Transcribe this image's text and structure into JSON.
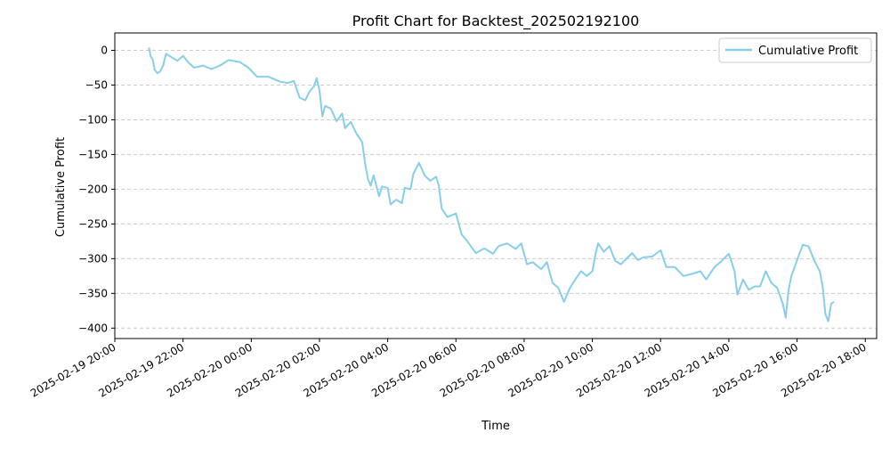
{
  "chart_data": {
    "type": "line",
    "title": "Profit Chart for Backtest_202502192100",
    "xlabel": "Time",
    "ylabel": "Cumulative Profit",
    "ylim": [
      -415,
      25
    ],
    "xlim": [
      "2025-02-19 20:00",
      "2025-02-20 18:20"
    ],
    "yticks": [
      0,
      -50,
      -100,
      -150,
      -200,
      -250,
      -300,
      -350,
      -400
    ],
    "xticks": [
      "2025-02-19 20:00",
      "2025-02-19 22:00",
      "2025-02-20 00:00",
      "2025-02-20 02:00",
      "2025-02-20 04:00",
      "2025-02-20 06:00",
      "2025-02-20 08:00",
      "2025-02-20 10:00",
      "2025-02-20 12:00",
      "2025-02-20 14:00",
      "2025-02-20 16:00",
      "2025-02-20 18:00"
    ],
    "grid": "y-dashed",
    "legend": {
      "position": "top-right",
      "entries": [
        "Cumulative Profit"
      ]
    },
    "colors": {
      "series": "#87ceeb",
      "grid": "#cccccc"
    },
    "series": [
      {
        "name": "Cumulative Profit",
        "points": [
          [
            "2025-02-19 21:00",
            4
          ],
          [
            "2025-02-19 21:03",
            -8
          ],
          [
            "2025-02-19 21:07",
            -14
          ],
          [
            "2025-02-19 21:10",
            -28
          ],
          [
            "2025-02-19 21:15",
            -33
          ],
          [
            "2025-02-19 21:20",
            -30
          ],
          [
            "2025-02-19 21:25",
            -22
          ],
          [
            "2025-02-19 21:30",
            -5
          ],
          [
            "2025-02-19 21:40",
            -10
          ],
          [
            "2025-02-19 21:50",
            -15
          ],
          [
            "2025-02-19 22:00",
            -8
          ],
          [
            "2025-02-19 22:10",
            -18
          ],
          [
            "2025-02-19 22:20",
            -25
          ],
          [
            "2025-02-19 22:35",
            -22
          ],
          [
            "2025-02-19 22:50",
            -27
          ],
          [
            "2025-02-19 23:05",
            -22
          ],
          [
            "2025-02-19 23:20",
            -14
          ],
          [
            "2025-02-19 23:40",
            -17
          ],
          [
            "2025-02-19 23:55",
            -25
          ],
          [
            "2025-02-20 00:10",
            -38
          ],
          [
            "2025-02-20 00:30",
            -38
          ],
          [
            "2025-02-20 00:50",
            -45
          ],
          [
            "2025-02-20 01:05",
            -47
          ],
          [
            "2025-02-20 01:15",
            -44
          ],
          [
            "2025-02-20 01:25",
            -68
          ],
          [
            "2025-02-20 01:35",
            -72
          ],
          [
            "2025-02-20 01:42",
            -60
          ],
          [
            "2025-02-20 01:50",
            -52
          ],
          [
            "2025-02-20 01:55",
            -40
          ],
          [
            "2025-02-20 02:00",
            -58
          ],
          [
            "2025-02-20 02:05",
            -95
          ],
          [
            "2025-02-20 02:10",
            -80
          ],
          [
            "2025-02-20 02:20",
            -84
          ],
          [
            "2025-02-20 02:30",
            -102
          ],
          [
            "2025-02-20 02:40",
            -91
          ],
          [
            "2025-02-20 02:45",
            -112
          ],
          [
            "2025-02-20 02:55",
            -103
          ],
          [
            "2025-02-20 03:05",
            -120
          ],
          [
            "2025-02-20 03:15",
            -132
          ],
          [
            "2025-02-20 03:20",
            -162
          ],
          [
            "2025-02-20 03:25",
            -185
          ],
          [
            "2025-02-20 03:30",
            -195
          ],
          [
            "2025-02-20 03:35",
            -180
          ],
          [
            "2025-02-20 03:45",
            -210
          ],
          [
            "2025-02-20 03:50",
            -196
          ],
          [
            "2025-02-20 04:00",
            -198
          ],
          [
            "2025-02-20 04:05",
            -222
          ],
          [
            "2025-02-20 04:15",
            -215
          ],
          [
            "2025-02-20 04:25",
            -220
          ],
          [
            "2025-02-20 04:30",
            -198
          ],
          [
            "2025-02-20 04:40",
            -200
          ],
          [
            "2025-02-20 04:45",
            -178
          ],
          [
            "2025-02-20 04:55",
            -162
          ],
          [
            "2025-02-20 05:05",
            -180
          ],
          [
            "2025-02-20 05:15",
            -188
          ],
          [
            "2025-02-20 05:25",
            -182
          ],
          [
            "2025-02-20 05:30",
            -195
          ],
          [
            "2025-02-20 05:35",
            -228
          ],
          [
            "2025-02-20 05:45",
            -240
          ],
          [
            "2025-02-20 06:00",
            -235
          ],
          [
            "2025-02-20 06:10",
            -265
          ],
          [
            "2025-02-20 06:20",
            -275
          ],
          [
            "2025-02-20 06:35",
            -292
          ],
          [
            "2025-02-20 06:50",
            -285
          ],
          [
            "2025-02-20 07:05",
            -293
          ],
          [
            "2025-02-20 07:15",
            -282
          ],
          [
            "2025-02-20 07:30",
            -278
          ],
          [
            "2025-02-20 07:45",
            -286
          ],
          [
            "2025-02-20 07:55",
            -278
          ],
          [
            "2025-02-20 08:05",
            -308
          ],
          [
            "2025-02-20 08:15",
            -305
          ],
          [
            "2025-02-20 08:30",
            -315
          ],
          [
            "2025-02-20 08:40",
            -305
          ],
          [
            "2025-02-20 08:50",
            -335
          ],
          [
            "2025-02-20 09:00",
            -342
          ],
          [
            "2025-02-20 09:10",
            -362
          ],
          [
            "2025-02-20 09:20",
            -343
          ],
          [
            "2025-02-20 09:30",
            -330
          ],
          [
            "2025-02-20 09:40",
            -318
          ],
          [
            "2025-02-20 09:50",
            -325
          ],
          [
            "2025-02-20 10:00",
            -318
          ],
          [
            "2025-02-20 10:05",
            -295
          ],
          [
            "2025-02-20 10:10",
            -278
          ],
          [
            "2025-02-20 10:20",
            -290
          ],
          [
            "2025-02-20 10:30",
            -282
          ],
          [
            "2025-02-20 10:40",
            -303
          ],
          [
            "2025-02-20 10:50",
            -308
          ],
          [
            "2025-02-20 11:00",
            -300
          ],
          [
            "2025-02-20 11:10",
            -292
          ],
          [
            "2025-02-20 11:20",
            -302
          ],
          [
            "2025-02-20 11:30",
            -298
          ],
          [
            "2025-02-20 11:45",
            -297
          ],
          [
            "2025-02-20 12:00",
            -288
          ],
          [
            "2025-02-20 12:10",
            -312
          ],
          [
            "2025-02-20 12:25",
            -312
          ],
          [
            "2025-02-20 12:40",
            -325
          ],
          [
            "2025-02-20 12:55",
            -322
          ],
          [
            "2025-02-20 13:10",
            -318
          ],
          [
            "2025-02-20 13:20",
            -330
          ],
          [
            "2025-02-20 13:35",
            -312
          ],
          [
            "2025-02-20 13:45",
            -305
          ],
          [
            "2025-02-20 14:00",
            -293
          ],
          [
            "2025-02-20 14:05",
            -305
          ],
          [
            "2025-02-20 14:10",
            -318
          ],
          [
            "2025-02-20 14:15",
            -352
          ],
          [
            "2025-02-20 14:25",
            -330
          ],
          [
            "2025-02-20 14:35",
            -345
          ],
          [
            "2025-02-20 14:45",
            -340
          ],
          [
            "2025-02-20 14:55",
            -340
          ],
          [
            "2025-02-20 15:05",
            -318
          ],
          [
            "2025-02-20 15:15",
            -335
          ],
          [
            "2025-02-20 15:25",
            -342
          ],
          [
            "2025-02-20 15:35",
            -365
          ],
          [
            "2025-02-20 15:40",
            -385
          ],
          [
            "2025-02-20 15:45",
            -345
          ],
          [
            "2025-02-20 15:50",
            -325
          ],
          [
            "2025-02-20 16:00",
            -302
          ],
          [
            "2025-02-20 16:10",
            -280
          ],
          [
            "2025-02-20 16:20",
            -282
          ],
          [
            "2025-02-20 16:30",
            -302
          ],
          [
            "2025-02-20 16:40",
            -318
          ],
          [
            "2025-02-20 16:45",
            -340
          ],
          [
            "2025-02-20 16:50",
            -380
          ],
          [
            "2025-02-20 16:55",
            -390
          ],
          [
            "2025-02-20 17:00",
            -365
          ],
          [
            "2025-02-20 17:05",
            -362
          ]
        ]
      }
    ]
  }
}
